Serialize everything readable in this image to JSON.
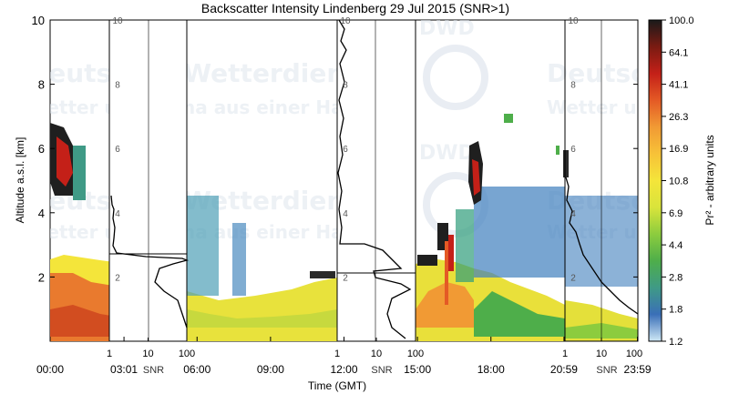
{
  "chart_data": {
    "type": "heatmap",
    "title": "Backscatter Intensity Lindenberg 29 Jul 2015 (SNR>1)",
    "xlabel": "Time (GMT)",
    "ylabel": "Altitude a.s.l. [km]",
    "ylim": [
      0,
      10
    ],
    "yticks": [
      2,
      4,
      6,
      8,
      10
    ],
    "xticks": [
      "00:00",
      "03:01",
      "06:00",
      "09:00",
      "12:00",
      "15:00",
      "18:00",
      "20:59",
      "23:59"
    ],
    "xrange_hours": [
      0,
      24
    ],
    "colorbar": {
      "label": "Pr² - arbitrary units",
      "ticks": [
        "100.0",
        "64.1",
        "41.1",
        "26.3",
        "16.9",
        "10.8",
        "6.9",
        "4.4",
        "2.8",
        "1.8",
        "1.2"
      ],
      "colors": [
        "#cfe8f5",
        "#3a6fb8",
        "#3f9a86",
        "#4eae4a",
        "#8ccc3e",
        "#d9e43b",
        "#f4e53a",
        "#f7c238",
        "#f19a34",
        "#e45a25",
        "#c42018",
        "#7a1b12",
        "#1a1a1a"
      ]
    },
    "snr_profiles": [
      {
        "time": "03:01",
        "axis_ticks": [
          "1",
          "10",
          "100"
        ],
        "axis_label": "SNR"
      },
      {
        "time": "12:00",
        "axis_ticks": [
          "1",
          "10",
          "100"
        ],
        "axis_label": "SNR"
      },
      {
        "time": "20:59",
        "axis_ticks": [
          "1",
          "10",
          "100"
        ],
        "axis_label": "SNR"
      }
    ],
    "snr_axis_altitude_ticks": [
      2,
      4,
      6,
      8,
      10
    ],
    "watermark": [
      "Deutscher Wetterdienst",
      "Wetter und Klima aus einer Hand",
      "DWD"
    ]
  }
}
